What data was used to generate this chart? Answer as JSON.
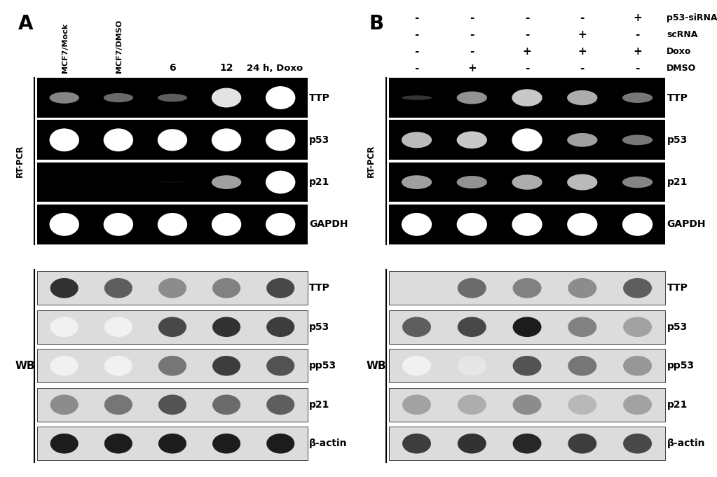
{
  "bg_color": "#ffffff",
  "panel_A": {
    "label": "A",
    "col_labels": [
      "MCF7/Mock",
      "MCF7/DMSO",
      "6",
      "12",
      "24 h, Doxo"
    ],
    "rt_pcr_rows": [
      "TTP",
      "p53",
      "p21",
      "GAPDH"
    ],
    "wb_rows": [
      "TTP",
      "p53",
      "pp53",
      "p21",
      "b-actin"
    ],
    "rt_pcr_bands": {
      "TTP": [
        0.5,
        0.4,
        0.35,
        0.85,
        1.0
      ],
      "p53": [
        1.0,
        1.0,
        0.95,
        1.0,
        0.95
      ],
      "p21": [
        0.0,
        0.0,
        0.05,
        0.6,
        1.0
      ],
      "GAPDH": [
        1.0,
        1.0,
        1.0,
        1.0,
        1.0
      ]
    },
    "wb_bands": {
      "TTP": [
        0.9,
        0.7,
        0.5,
        0.55,
        0.8
      ],
      "p53": [
        0.05,
        0.05,
        0.8,
        0.9,
        0.85
      ],
      "pp53": [
        0.05,
        0.05,
        0.6,
        0.85,
        0.75
      ],
      "p21": [
        0.5,
        0.6,
        0.75,
        0.65,
        0.7
      ],
      "b-actin": [
        1.0,
        1.0,
        1.0,
        1.0,
        1.0
      ]
    }
  },
  "panel_B": {
    "label": "B",
    "sign_labels": [
      "p53-siRNA",
      "scRNA",
      "Doxo",
      "DMSO"
    ],
    "row_signs": [
      [
        "-",
        "-",
        "-",
        "-",
        "+"
      ],
      [
        "-",
        "-",
        "-",
        "+",
        "-"
      ],
      [
        "-",
        "-",
        "+",
        "+",
        "+"
      ],
      [
        "-",
        "+",
        "-",
        "-",
        "-"
      ]
    ],
    "rt_pcr_rows": [
      "TTP",
      "p53",
      "p21",
      "GAPDH"
    ],
    "wb_rows": [
      "TTP",
      "p53",
      "pp53",
      "p21",
      "b-actin"
    ],
    "rt_pcr_bands": {
      "TTP": [
        0.2,
        0.55,
        0.75,
        0.65,
        0.45
      ],
      "p53": [
        0.7,
        0.75,
        1.0,
        0.6,
        0.45
      ],
      "p21": [
        0.6,
        0.55,
        0.65,
        0.7,
        0.5
      ],
      "GAPDH": [
        1.0,
        1.0,
        1.0,
        1.0,
        1.0
      ]
    },
    "wb_bands": {
      "TTP": [
        0.15,
        0.65,
        0.55,
        0.5,
        0.7
      ],
      "p53": [
        0.7,
        0.8,
        1.0,
        0.55,
        0.4
      ],
      "pp53": [
        0.05,
        0.1,
        0.75,
        0.6,
        0.45
      ],
      "p21": [
        0.4,
        0.35,
        0.5,
        0.3,
        0.4
      ],
      "b-actin": [
        0.85,
        0.9,
        0.95,
        0.85,
        0.8
      ]
    }
  }
}
